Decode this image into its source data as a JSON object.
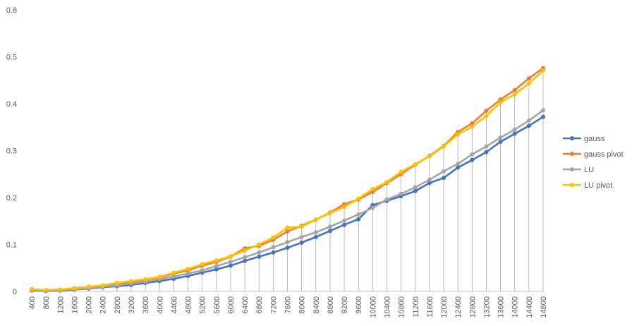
{
  "chart_data": {
    "type": "line",
    "title": "",
    "xlabel": "",
    "ylabel": "",
    "ylim": [
      0,
      0.6
    ],
    "yticks": [
      "0",
      "0.1",
      "0.2",
      "0.3",
      "0.4",
      "0.5",
      "0.6"
    ],
    "grid": "vertical drop lines at each category",
    "legend_position": "right",
    "categories": [
      "400",
      "800",
      "1200",
      "1600",
      "2000",
      "2400",
      "2800",
      "3200",
      "3600",
      "4000",
      "4400",
      "4800",
      "5200",
      "5600",
      "6000",
      "6400",
      "6800",
      "7200",
      "7600",
      "8000",
      "8400",
      "8800",
      "9200",
      "9600",
      "10000",
      "10400",
      "10800",
      "11200",
      "11600",
      "12000",
      "12400",
      "12800",
      "13200",
      "13600",
      "14000",
      "14400",
      "14800"
    ],
    "series": [
      {
        "name": "gauss",
        "color": "#4472C4",
        "values": [
          0.002,
          0.001,
          0.002,
          0.004,
          0.006,
          0.009,
          0.011,
          0.014,
          0.018,
          0.022,
          0.027,
          0.033,
          0.04,
          0.047,
          0.055,
          0.065,
          0.074,
          0.083,
          0.093,
          0.104,
          0.116,
          0.129,
          0.142,
          0.154,
          0.184,
          0.193,
          0.203,
          0.214,
          0.231,
          0.242,
          0.264,
          0.28,
          0.297,
          0.319,
          0.336,
          0.353,
          0.372
        ]
      },
      {
        "name": "gauss pivot",
        "color": "#ED7D31",
        "values": [
          0.004,
          0.002,
          0.003,
          0.006,
          0.009,
          0.012,
          0.016,
          0.02,
          0.025,
          0.03,
          0.038,
          0.045,
          0.055,
          0.063,
          0.074,
          0.092,
          0.097,
          0.11,
          0.128,
          0.14,
          0.153,
          0.168,
          0.186,
          0.196,
          0.212,
          0.231,
          0.25,
          0.27,
          0.289,
          0.31,
          0.34,
          0.358,
          0.385,
          0.409,
          0.429,
          0.454,
          0.476
        ]
      },
      {
        "name": "LU",
        "color": "#A5A5A5",
        "values": [
          0.003,
          0.002,
          0.003,
          0.005,
          0.007,
          0.01,
          0.013,
          0.017,
          0.021,
          0.026,
          0.032,
          0.038,
          0.045,
          0.054,
          0.063,
          0.073,
          0.083,
          0.094,
          0.105,
          0.116,
          0.126,
          0.138,
          0.151,
          0.164,
          0.178,
          0.196,
          0.208,
          0.222,
          0.238,
          0.256,
          0.272,
          0.292,
          0.309,
          0.328,
          0.345,
          0.364,
          0.386
        ]
      },
      {
        "name": "LU pivot",
        "color": "#FFC000",
        "values": [
          0.005,
          0.003,
          0.004,
          0.007,
          0.01,
          0.013,
          0.018,
          0.022,
          0.026,
          0.031,
          0.04,
          0.048,
          0.058,
          0.066,
          0.075,
          0.087,
          0.1,
          0.115,
          0.136,
          0.138,
          0.153,
          0.167,
          0.18,
          0.198,
          0.218,
          0.233,
          0.255,
          0.271,
          0.288,
          0.309,
          0.335,
          0.351,
          0.374,
          0.403,
          0.42,
          0.443,
          0.471
        ]
      }
    ]
  }
}
